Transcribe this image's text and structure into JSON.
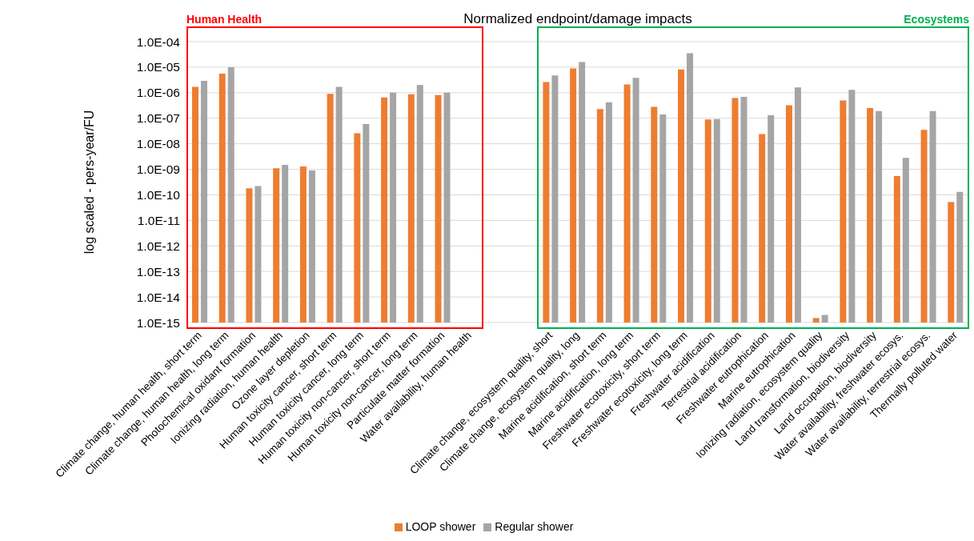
{
  "chart_data": {
    "type": "bar",
    "title": "Normalized endpoint/damage impacts",
    "ylabel": "log scaled - pers-year/FU",
    "categories": [
      "Climate change, human health, short term",
      "Climate change, human health, long term",
      "Photochemical oxidant formation",
      "Ionizing radiation, human health",
      "Ozone layer depletion",
      "Human toxicity cancer, short term",
      "Human toxicity cancer, long term",
      "Human toxicity non-cancer, short term",
      "Human toxicity non-cancer, long term",
      "Particulate matter formation",
      "Water availability, human health",
      null,
      null,
      "Climate change, ecosystem quality, short",
      "Climate change, ecosystem quality, long",
      "Marine acidification, short term",
      "Marine acidification, long term",
      "Freshwater ecotoxicity, short term",
      "Freshwater ecotoxicity, long term",
      "Freshwater acidification",
      "Terrestrial acidification",
      "Freshwater eutrophication",
      "Marine eutrophication",
      "Ionizing radiation, ecosystem quality",
      "Land transformation, biodiversity",
      "Land occupation, biodiversity",
      "Water availability, freshwater ecosys.",
      "Water availability, terrestrial ecosys.",
      "Thermally polluted water"
    ],
    "series": [
      {
        "name": "LOOP shower",
        "color": "#ed7d31",
        "values": [
          1.7e-06,
          5.6e-06,
          1.8e-10,
          1.1e-09,
          1.3e-09,
          9e-07,
          2.6e-08,
          6.5e-07,
          8.7e-07,
          8.1e-07,
          null,
          null,
          null,
          2.6e-06,
          8.9e-06,
          2.3e-07,
          2.1e-06,
          2.8e-07,
          8.2e-06,
          9e-08,
          6.2e-07,
          2.4e-08,
          3.2e-07,
          1.5e-15,
          5e-07,
          2.5e-07,
          5.4e-10,
          3.5e-08,
          5.2e-11
        ]
      },
      {
        "name": "Regular shower",
        "color": "#a5a5a5",
        "values": [
          2.9e-06,
          1e-05,
          2.2e-10,
          1.5e-09,
          9e-10,
          1.7e-06,
          5.9e-08,
          1e-06,
          2e-06,
          1e-06,
          null,
          null,
          null,
          4.7e-06,
          1.6e-05,
          4.2e-07,
          3.8e-06,
          1.4e-07,
          3.5e-05,
          9.3e-08,
          6.9e-07,
          1.3e-07,
          1.6e-06,
          2e-15,
          1.3e-06,
          1.9e-07,
          2.8e-09,
          1.9e-07,
          1.3e-10
        ]
      }
    ],
    "log": "y",
    "ylim": [
      1e-15,
      0.0001
    ],
    "yticks": [
      {
        "value": 1e-15,
        "label": "1.0E-15"
      },
      {
        "value": 1e-14,
        "label": "1.0E-14"
      },
      {
        "value": 1e-13,
        "label": "1.0E-13"
      },
      {
        "value": 1e-12,
        "label": "1.0E-12"
      },
      {
        "value": 1e-11,
        "label": "1.0E-11"
      },
      {
        "value": 1e-10,
        "label": "1.0E-10"
      },
      {
        "value": 1e-09,
        "label": "1.0E-09"
      },
      {
        "value": 1e-08,
        "label": "1.0E-08"
      },
      {
        "value": 1e-07,
        "label": "1.0E-07"
      },
      {
        "value": 1e-06,
        "label": "1.0E-06"
      },
      {
        "value": 1e-05,
        "label": "1.0E-05"
      },
      {
        "value": 0.0001,
        "label": "1.0E-04"
      }
    ],
    "grid": "y",
    "legend": "bottom",
    "annotations": [
      "Human Health",
      "Ecosystems"
    ]
  }
}
